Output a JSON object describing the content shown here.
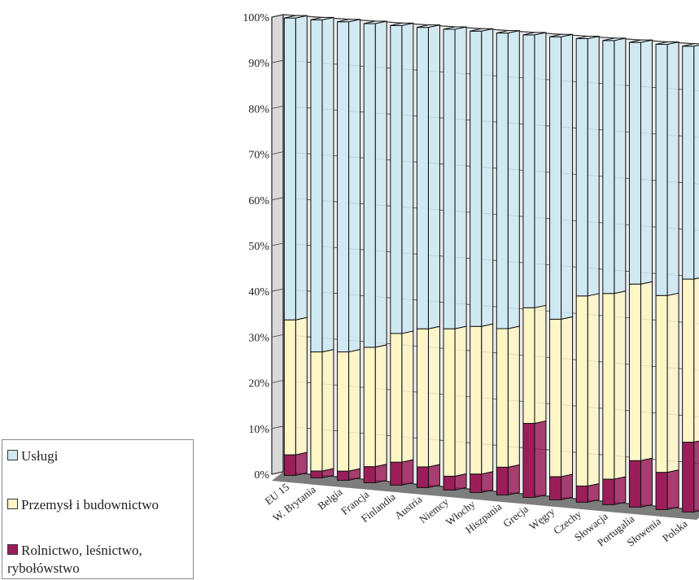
{
  "chart_data": {
    "type": "bar",
    "stacked": true,
    "three_d": true,
    "categories": [
      "EU 15",
      "W. Brytania",
      "Belgia",
      "Francja",
      "Finlandia",
      "Austria",
      "Niemcy",
      "Włochy",
      "Hiszpania",
      "Grecja",
      "Węgry",
      "Czechy",
      "Słowacja",
      "Portugalia",
      "Słowenia",
      "Polska"
    ],
    "series": [
      {
        "name": "Rolnictwo, leśnictwo, rybołówstwo",
        "color": "#9b1e5a",
        "values": [
          4.5,
          1.5,
          2,
          3.5,
          5,
          4.5,
          3,
          4,
          6,
          16,
          5,
          3.5,
          5.5,
          10,
          8,
          15
        ]
      },
      {
        "name": "Przemysł i budownictwo",
        "color": "#fff6c6",
        "values": [
          29.5,
          26,
          26,
          26,
          28,
          30,
          32,
          32,
          30,
          25,
          34,
          41,
          40,
          38,
          38,
          35
        ]
      },
      {
        "name": "Usługi",
        "color": "#cfe9f3",
        "values": [
          66,
          72.5,
          72,
          70.5,
          67,
          65.5,
          65,
          64,
          64,
          59,
          61,
          55.5,
          54.5,
          52,
          54,
          50
        ]
      }
    ],
    "y_ticks": [
      "0%",
      "10%",
      "20%",
      "30%",
      "40%",
      "50%",
      "60%",
      "70%",
      "80%",
      "90%",
      "100%"
    ],
    "ylim": [
      0,
      100
    ],
    "grid": true,
    "legend_position": "bottom-left"
  },
  "legend": [
    {
      "label": "Usługi",
      "color": "#cfe9f3"
    },
    {
      "label": "Przemysł i budownictwo",
      "color": "#fff6c6"
    },
    {
      "label": "Rolnictwo, leśnictwo,",
      "label2": "rybołówstwo",
      "color": "#9b1e5a"
    }
  ]
}
